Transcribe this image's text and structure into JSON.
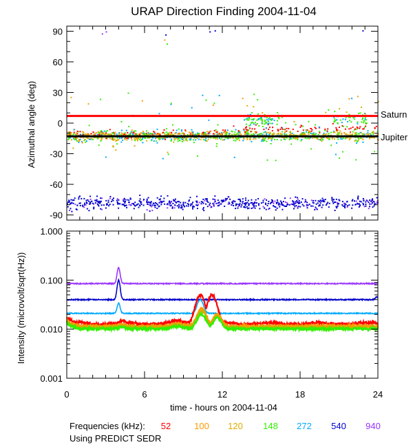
{
  "chart_data": [
    {
      "type": "scatter",
      "title": "URAP Direction Finding  2004-11-04",
      "ylabel": "Azimuthal angle (deg)",
      "xlabel": "time - hours on 2004-11-04",
      "xlim": [
        0,
        24
      ],
      "ylim": [
        -95,
        95
      ],
      "yticks": [
        90,
        60,
        30,
        0,
        -30,
        -60,
        -90
      ],
      "ytick_labels": [
        "90",
        "60",
        "30",
        "0",
        "-30",
        "-60",
        "-90"
      ],
      "reference_lines": [
        {
          "name": "Saturn",
          "y": 7,
          "color": "#ff0000"
        },
        {
          "name": "Jupiter",
          "y": -13,
          "color": "#000000"
        }
      ],
      "series": [
        {
          "name": "52 kHz",
          "color": "#ff0000",
          "band": [
            -14,
            -3
          ],
          "region": "mid, rising toward Saturn after 12 h"
        },
        {
          "name": "100 kHz",
          "color": "#ff9900",
          "band": [
            -18,
            -5
          ]
        },
        {
          "name": "120 kHz",
          "color": "#ddaa00",
          "band": [
            -18,
            -5
          ]
        },
        {
          "name": "148 kHz",
          "color": "#33ee00",
          "band": [
            -20,
            10
          ]
        },
        {
          "name": "272 kHz",
          "color": "#00aaff",
          "band": [
            -25,
            5
          ]
        },
        {
          "name": "540 kHz",
          "color": "#0000cc",
          "band": [
            -90,
            -65
          ]
        },
        {
          "name": "940 kHz",
          "color": "#9933ff",
          "band": [
            -90,
            -68
          ]
        }
      ]
    },
    {
      "type": "line",
      "ylabel": "Intensity (microvolt/sqrt(Hz))",
      "xlabel": "time - hours on 2004-11-04",
      "xlim": [
        0,
        24
      ],
      "yscale": "log",
      "ylim": [
        0.001,
        1.0
      ],
      "yticks": [
        1.0,
        0.1,
        0.01,
        0.001
      ],
      "ytick_labels": [
        "1.000",
        "0.100",
        "0.010",
        "0.001"
      ],
      "xticks": [
        0,
        6,
        12,
        18,
        24
      ],
      "xtick_labels": [
        "0",
        "6",
        "12",
        "18",
        "24"
      ],
      "series": [
        {
          "name": "940",
          "color": "#9933ff",
          "baseline": 0.085,
          "peaks": [
            {
              "t": 4.0,
              "v": 0.18,
              "w": 0.15
            }
          ]
        },
        {
          "name": "540",
          "color": "#0000cc",
          "baseline": 0.04,
          "peaks": [
            {
              "t": 4.0,
              "v": 0.1,
              "w": 0.15
            },
            {
              "t": 23.9,
              "v": 0.045,
              "w": 0.15
            }
          ]
        },
        {
          "name": "272",
          "color": "#00aaff",
          "baseline": 0.021,
          "peaks": [
            {
              "t": 4.0,
              "v": 0.034,
              "w": 0.15
            },
            {
              "t": 10.3,
              "v": 0.04,
              "w": 0.3
            }
          ]
        },
        {
          "name": "52",
          "color": "#ff0000",
          "baseline": 0.013,
          "peaks": [
            {
              "t": 10.3,
              "v": 0.05,
              "w": 0.45
            },
            {
              "t": 11.2,
              "v": 0.05,
              "w": 0.45
            }
          ]
        },
        {
          "name": "100",
          "color": "#ff9900",
          "baseline": 0.0115,
          "peaks": [
            {
              "t": 10.4,
              "v": 0.026,
              "w": 0.45
            },
            {
              "t": 11.6,
              "v": 0.02,
              "w": 0.4
            }
          ]
        },
        {
          "name": "120",
          "color": "#ddaa00",
          "baseline": 0.011,
          "peaks": [
            {
              "t": 10.4,
              "v": 0.024,
              "w": 0.45
            },
            {
              "t": 11.6,
              "v": 0.019,
              "w": 0.4
            }
          ]
        },
        {
          "name": "148",
          "color": "#33ee00",
          "baseline": 0.0102,
          "peaks": [
            {
              "t": 10.4,
              "v": 0.02,
              "w": 0.45
            },
            {
              "t": 11.6,
              "v": 0.017,
              "w": 0.4
            }
          ]
        }
      ]
    }
  ],
  "legend": {
    "label": "Frequencies (kHz):",
    "items": [
      {
        "text": "52",
        "color": "#ff0000"
      },
      {
        "text": "100",
        "color": "#ff9900"
      },
      {
        "text": "120",
        "color": "#ddaa00"
      },
      {
        "text": "148",
        "color": "#33ee00"
      },
      {
        "text": "272",
        "color": "#00aaff"
      },
      {
        "text": "540",
        "color": "#0000cc"
      },
      {
        "text": "940",
        "color": "#9933ff"
      }
    ]
  },
  "footer": "Using PREDICT SEDR"
}
